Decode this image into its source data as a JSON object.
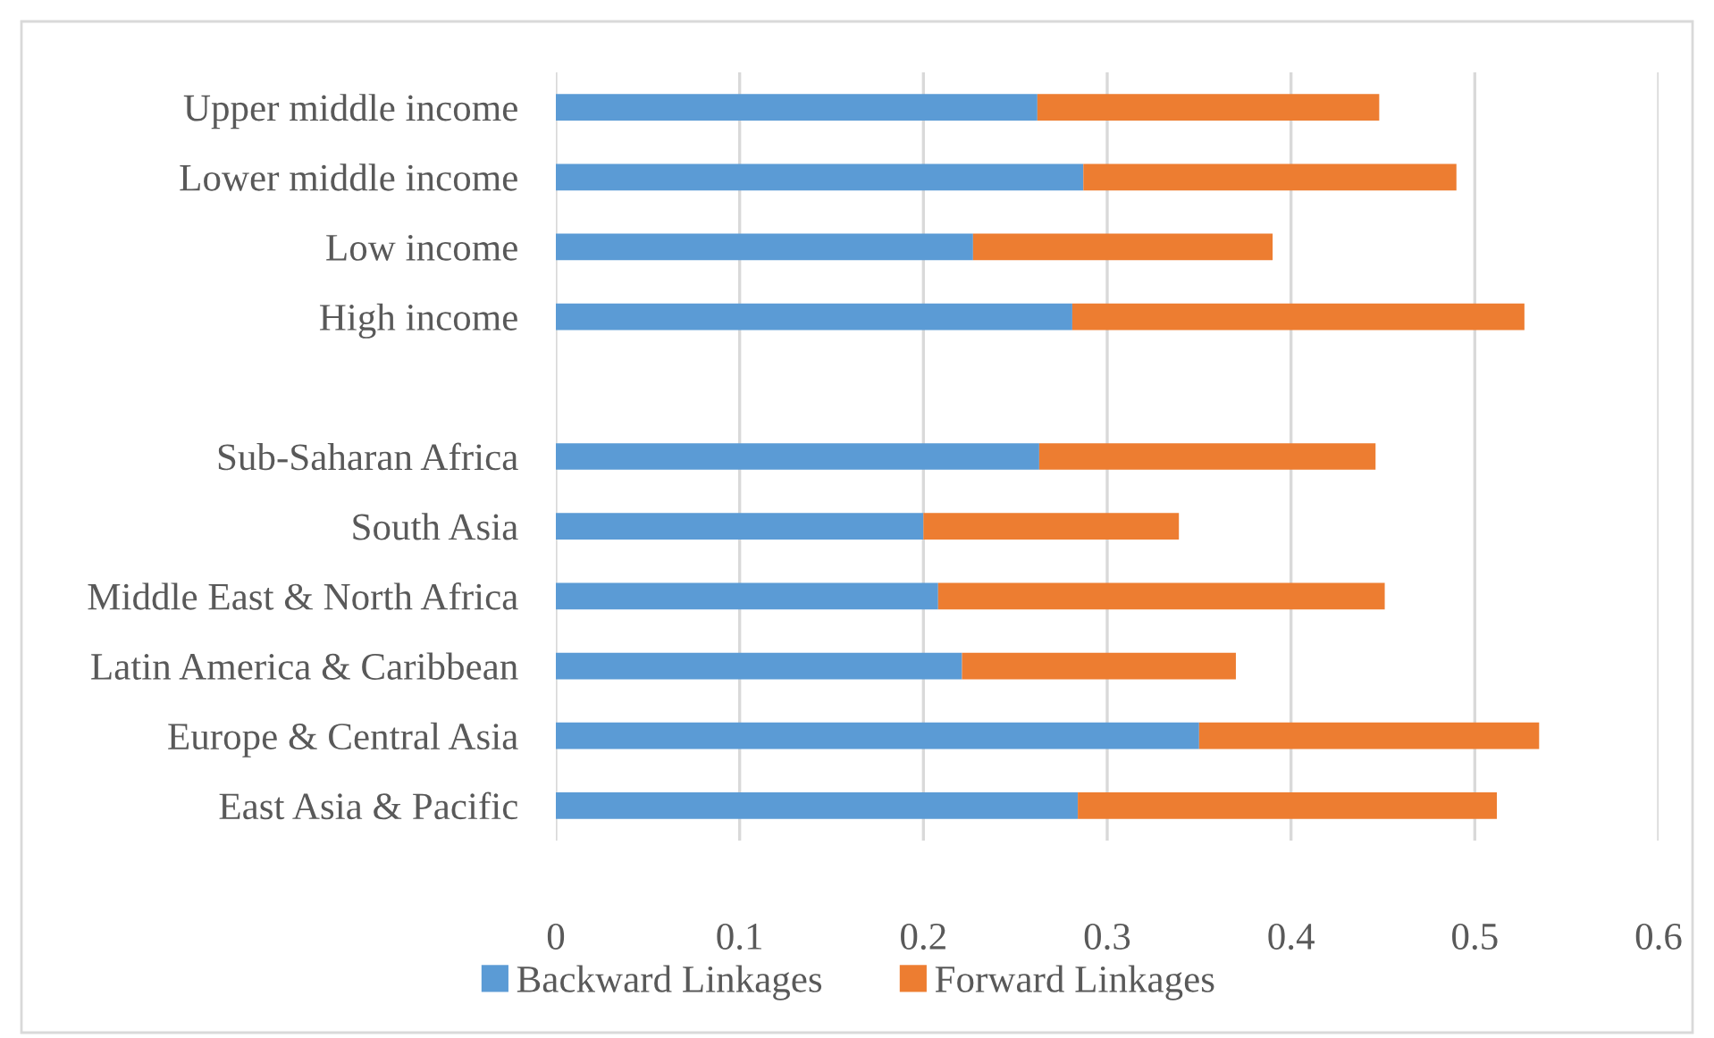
{
  "chart_data": {
    "type": "bar",
    "orientation": "horizontal",
    "stacked": true,
    "categories": [
      "Upper middle income",
      "Lower middle income",
      "Low income",
      "High income",
      null,
      "Sub-Saharan Africa",
      "South Asia",
      "Middle East & North Africa",
      "Latin America & Caribbean",
      "Europe & Central Asia",
      "East Asia & Pacific"
    ],
    "series": [
      {
        "name": "Backward Linkages",
        "color": "#5b9bd5",
        "values": [
          0.262,
          0.287,
          0.227,
          0.281,
          null,
          0.263,
          0.2,
          0.208,
          0.221,
          0.35,
          0.284
        ]
      },
      {
        "name": "Forward Linkages",
        "color": "#ed7d31",
        "values": [
          0.186,
          0.203,
          0.163,
          0.246,
          null,
          0.183,
          0.139,
          0.243,
          0.149,
          0.185,
          0.228
        ]
      }
    ],
    "xlim": [
      0,
      0.6
    ],
    "xticks": [
      0,
      0.1,
      0.2,
      0.3,
      0.4,
      0.5,
      0.6
    ],
    "grid": "x",
    "legend": "bottom"
  }
}
